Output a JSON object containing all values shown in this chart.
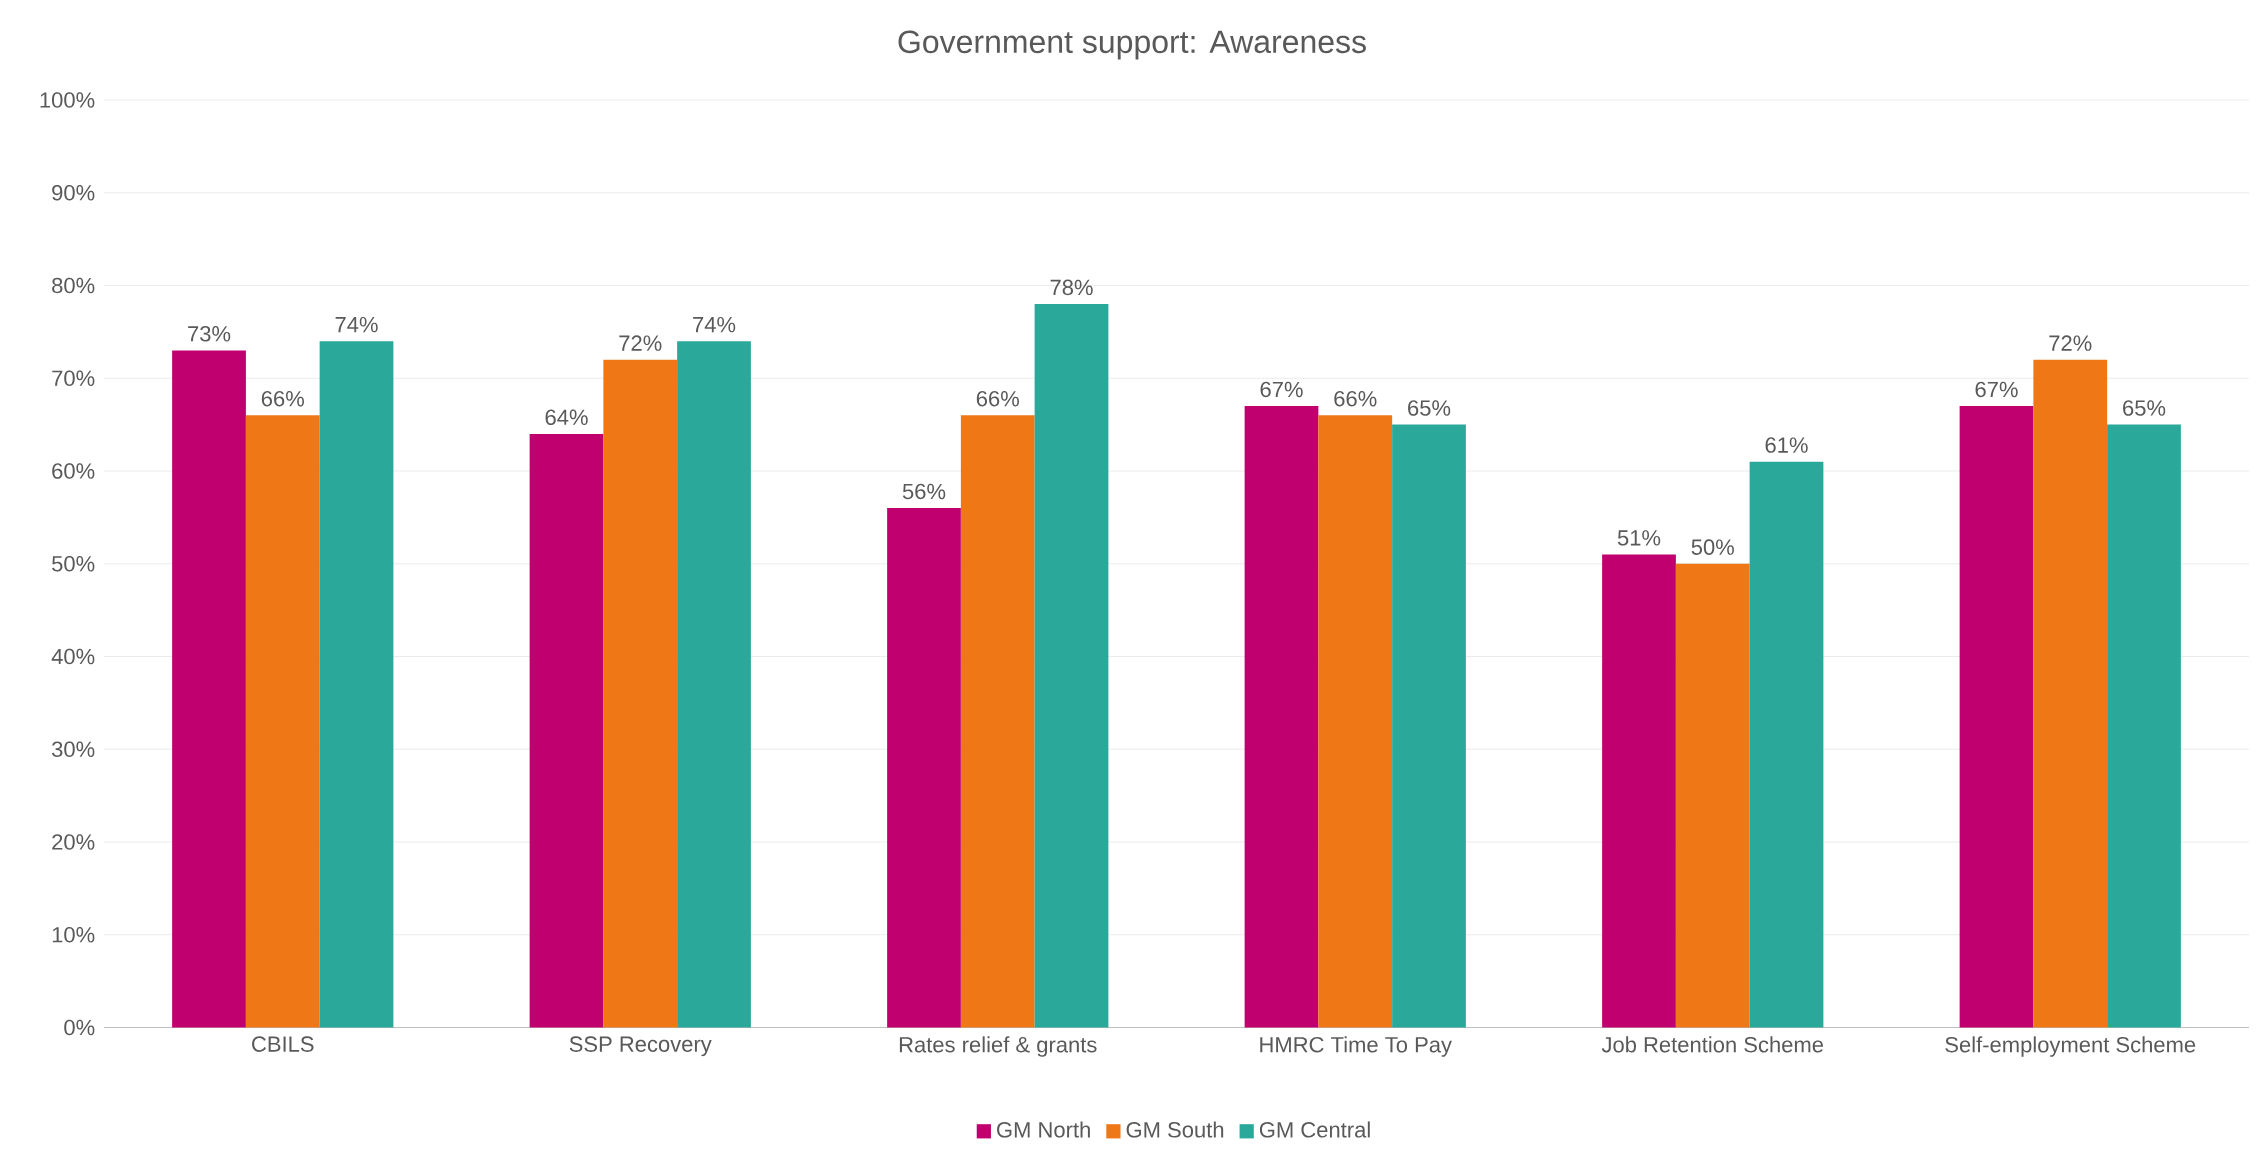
{
  "chart_data": {
    "type": "bar",
    "title": "Government support: Awareness",
    "categories": [
      "CBILS",
      "SSP Recovery",
      "Rates relief & grants",
      "HMRC Time To Pay",
      "Job Retention Scheme",
      "Self-employment Scheme"
    ],
    "series": [
      {
        "name": "GM North",
        "color": "#c0006f",
        "values": [
          73,
          64,
          56,
          67,
          51,
          67
        ],
        "value_labels": [
          "73%",
          "64%",
          "56%",
          "67%",
          "51%",
          "67%"
        ]
      },
      {
        "name": "GM South",
        "color": "#ef7716",
        "values": [
          66,
          72,
          66,
          66,
          50,
          72
        ],
        "value_labels": [
          "66%",
          "72%",
          "66%",
          "66%",
          "50%",
          "72%"
        ]
      },
      {
        "name": "GM Central",
        "color": "#2aa89a",
        "values": [
          74,
          74,
          78,
          65,
          61,
          65
        ],
        "value_labels": [
          "74%",
          "74%",
          "78%",
          "65%",
          "61%",
          "65%"
        ]
      }
    ],
    "ylim": [
      0,
      100
    ],
    "yticks": [
      {
        "value": 0,
        "label": "0%"
      },
      {
        "value": 10,
        "label": "10%"
      },
      {
        "value": 20,
        "label": "20%"
      },
      {
        "value": 30,
        "label": "30%"
      },
      {
        "value": 40,
        "label": "40%"
      },
      {
        "value": 50,
        "label": "50%"
      },
      {
        "value": 60,
        "label": "60%"
      },
      {
        "value": 70,
        "label": "70%"
      },
      {
        "value": 80,
        "label": "80%"
      },
      {
        "value": 90,
        "label": "90%"
      },
      {
        "value": 100,
        "label": "100%"
      }
    ],
    "grid": "y",
    "legend": "bottom"
  }
}
